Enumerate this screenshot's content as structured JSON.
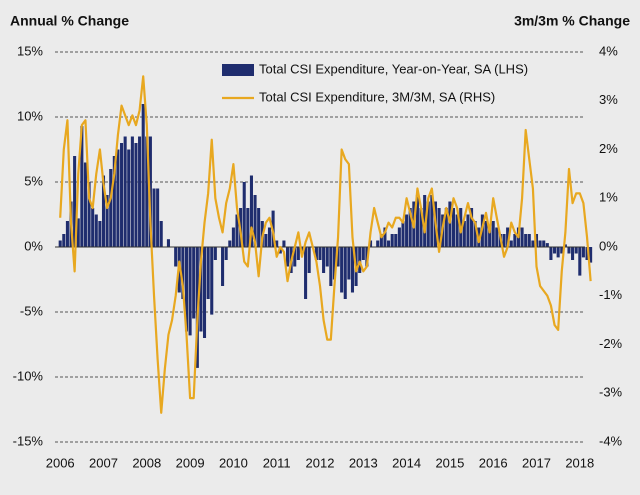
{
  "chart_data": {
    "type": "bar_line",
    "y_axis_title": "Annual % Change",
    "y2_axis_title": "3m/3m % Change",
    "xlim": [
      2005.88,
      2018.12
    ],
    "xticks": [
      2006,
      2007,
      2008,
      2009,
      2010,
      2011,
      2012,
      2013,
      2014,
      2015,
      2016,
      2017,
      2018
    ],
    "ylim": [
      -15,
      15
    ],
    "yticks": [
      {
        "value": -15,
        "label": "-15%"
      },
      {
        "value": -10,
        "label": "-10%"
      },
      {
        "value": -5,
        "label": "-5%"
      },
      {
        "value": 0,
        "label": "0%"
      },
      {
        "value": 5,
        "label": "5%"
      },
      {
        "value": 10,
        "label": "10%"
      },
      {
        "value": 15,
        "label": "15%"
      }
    ],
    "y2lim": [
      -4,
      4
    ],
    "y2ticks": [
      {
        "value": -4,
        "label": "-4%"
      },
      {
        "value": -3,
        "label": "-3%"
      },
      {
        "value": -2,
        "label": "-2%"
      },
      {
        "value": -1,
        "label": "-1%"
      },
      {
        "value": 0,
        "label": "0%"
      },
      {
        "value": 1,
        "label": "1%"
      },
      {
        "value": 2,
        "label": "2%"
      },
      {
        "value": 3,
        "label": "3%"
      },
      {
        "value": 4,
        "label": "4%"
      }
    ],
    "grid": true,
    "legend": "top",
    "x": [
      2006,
      2006.083,
      2006.167,
      2006.25,
      2006.333,
      2006.417,
      2006.5,
      2006.583,
      2006.667,
      2006.75,
      2006.833,
      2006.917,
      2007,
      2007.083,
      2007.167,
      2007.25,
      2007.333,
      2007.417,
      2007.5,
      2007.583,
      2007.667,
      2007.75,
      2007.833,
      2007.917,
      2008,
      2008.083,
      2008.167,
      2008.25,
      2008.333,
      2008.417,
      2008.5,
      2008.583,
      2008.667,
      2008.75,
      2008.833,
      2008.917,
      2009,
      2009.083,
      2009.167,
      2009.25,
      2009.333,
      2009.417,
      2009.5,
      2009.583,
      2009.667,
      2009.75,
      2009.833,
      2009.917,
      2010,
      2010.083,
      2010.167,
      2010.25,
      2010.333,
      2010.417,
      2010.5,
      2010.583,
      2010.667,
      2010.75,
      2010.833,
      2010.917,
      2011,
      2011.083,
      2011.167,
      2011.25,
      2011.333,
      2011.417,
      2011.5,
      2011.583,
      2011.667,
      2011.75,
      2011.833,
      2011.917,
      2012,
      2012.083,
      2012.167,
      2012.25,
      2012.333,
      2012.417,
      2012.5,
      2012.583,
      2012.667,
      2012.75,
      2012.833,
      2012.917,
      2013,
      2013.083,
      2013.167,
      2013.25,
      2013.333,
      2013.417,
      2013.5,
      2013.583,
      2013.667,
      2013.75,
      2013.833,
      2013.917,
      2014,
      2014.083,
      2014.167,
      2014.25,
      2014.333,
      2014.417,
      2014.5,
      2014.583,
      2014.667,
      2014.75,
      2014.833,
      2014.917,
      2015,
      2015.083,
      2015.167,
      2015.25,
      2015.333,
      2015.417,
      2015.5,
      2015.583,
      2015.667,
      2015.75,
      2015.833,
      2015.917,
      2016,
      2016.083,
      2016.167,
      2016.25,
      2016.333,
      2016.417,
      2016.5,
      2016.583,
      2016.667,
      2016.75,
      2016.833,
      2016.917,
      2017,
      2017.083,
      2017.167,
      2017.25,
      2017.333,
      2017.417,
      2017.5,
      2017.583,
      2017.667,
      2017.75,
      2017.833,
      2017.917,
      2018,
      2018.083,
      2018.167,
      2018.25
    ],
    "series": [
      {
        "name": "Total CSI Expenditure, Year-on-Year, SA (LHS)",
        "type": "bar",
        "color": "#1f2d6e",
        "values": [
          0.5,
          1.0,
          2.0,
          3.5,
          7.0,
          2.2,
          9.3,
          6.5,
          5.0,
          3.0,
          2.5,
          2.0,
          5.5,
          4.0,
          6.0,
          7.0,
          7.5,
          8.0,
          8.5,
          7.5,
          8.5,
          8.0,
          8.5,
          11.0,
          8.5,
          8.5,
          4.5,
          4.5,
          2.0,
          0.0,
          0.6,
          0.0,
          -1.5,
          -3.5,
          -4.0,
          -6.5,
          -6.8,
          -5.5,
          -9.3,
          -6.5,
          -7.0,
          -4.0,
          -5.2,
          -1.0,
          0.0,
          -3.0,
          -1.0,
          0.5,
          1.5,
          2.5,
          3.0,
          5.0,
          3.0,
          5.5,
          4.0,
          3.0,
          2.0,
          1.0,
          1.5,
          2.8,
          0.5,
          -0.5,
          0.5,
          -1.5,
          -2.0,
          -1.5,
          -1.0,
          -0.5,
          -4.0,
          -2.0,
          0.0,
          -1.0,
          -1.0,
          -2.0,
          -1.5,
          -3.0,
          -2.5,
          -1.5,
          -3.5,
          -4.0,
          -2.5,
          -3.5,
          -3.0,
          -2.0,
          -1.0,
          -1.5,
          0.5,
          0.0,
          0.5,
          1.0,
          1.5,
          0.5,
          1.0,
          1.0,
          1.5,
          2.0,
          2.5,
          3.0,
          3.5,
          4.0,
          3.0,
          4.0,
          3.5,
          4.0,
          3.5,
          3.0,
          2.5,
          3.0,
          3.5,
          3.0,
          2.5,
          3.0,
          2.0,
          2.5,
          3.0,
          2.0,
          1.5,
          2.5,
          2.0,
          1.5,
          2.0,
          1.5,
          1.0,
          1.0,
          1.5,
          0.5,
          1.0,
          1.5,
          1.5,
          1.0,
          1.0,
          0.5,
          1.0,
          0.5,
          0.5,
          0.3,
          -1.0,
          -0.5,
          -0.8,
          -0.5,
          0.2,
          -0.5,
          -1.0,
          -0.5,
          -2.2,
          -0.8,
          -1.0,
          -1.2
        ]
      },
      {
        "name": "Total CSI Expenditure, 3M/3M, SA (RHS)",
        "type": "line",
        "axis": "y2",
        "color": "#e8a820",
        "values": [
          0.6,
          2.0,
          2.6,
          0.5,
          -0.5,
          1.5,
          2.5,
          2.6,
          1.0,
          0.8,
          1.5,
          2.0,
          1.3,
          0.8,
          1.0,
          1.5,
          2.3,
          2.9,
          2.7,
          2.5,
          2.7,
          2.5,
          2.8,
          3.5,
          2.5,
          0.5,
          -1.0,
          -2.3,
          -3.4,
          -2.5,
          -1.8,
          -1.5,
          -1.0,
          -0.3,
          -0.8,
          -1.8,
          -3.1,
          -3.1,
          -1.5,
          -0.3,
          0.5,
          1.1,
          2.2,
          1.0,
          0.6,
          0.3,
          0.9,
          1.2,
          1.7,
          0.8,
          0.3,
          -0.3,
          -0.4,
          0.4,
          0.1,
          -0.6,
          0.2,
          0.5,
          0.6,
          0.3,
          -0.2,
          0.0,
          -0.1,
          -0.7,
          -0.3,
          0.0,
          0.3,
          -0.2,
          0.1,
          0.3,
          0.0,
          -0.3,
          -0.8,
          -1.5,
          -1.9,
          -1.9,
          -0.8,
          0.2,
          2.0,
          1.8,
          1.7,
          0.2,
          -0.5,
          -0.3,
          -0.5,
          -0.4,
          0.3,
          0.8,
          0.5,
          0.2,
          0.3,
          0.5,
          0.4,
          0.6,
          0.6,
          0.5,
          1.0,
          0.7,
          0.4,
          1.2,
          0.8,
          0.3,
          1.0,
          1.2,
          0.5,
          -0.1,
          0.4,
          0.8,
          0.5,
          1.0,
          0.8,
          0.3,
          0.6,
          0.9,
          0.6,
          0.5,
          0.1,
          0.4,
          0.7,
          0.3,
          1.0,
          0.6,
          0.2,
          -0.2,
          0.0,
          0.5,
          0.3,
          0.2,
          1.0,
          2.4,
          1.8,
          1.2,
          -0.4,
          -0.8,
          -0.9,
          -1.0,
          -1.2,
          -1.6,
          -1.7,
          -0.5,
          0.3,
          1.6,
          0.9,
          1.1,
          1.1,
          0.9,
          0.2,
          -0.7
        ]
      }
    ]
  }
}
